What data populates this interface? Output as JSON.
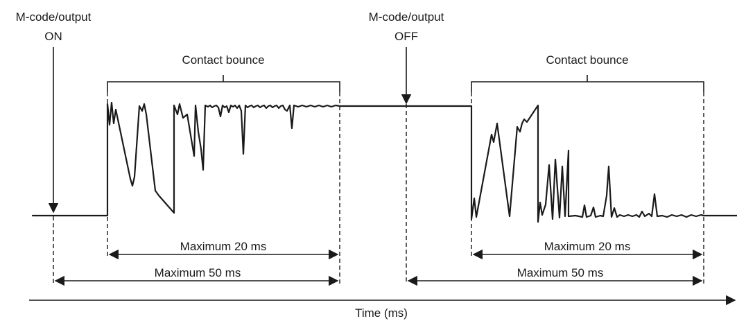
{
  "labels": {
    "event_on_line1": "M-code/output",
    "event_on_line2": "ON",
    "event_off_line1": "M-code/output",
    "event_off_line2": "OFF",
    "bounce_on": "Contact bounce",
    "bounce_off": "Contact bounce",
    "max20_on": "Maximum 20 ms",
    "max50_on": "Maximum 50 ms",
    "max20_off": "Maximum 20 ms",
    "max50_off": "Maximum 50 ms",
    "time_axis": "Time (ms)"
  },
  "colors": {
    "ink": "#1a1a1a",
    "background": "#ffffff"
  }
}
